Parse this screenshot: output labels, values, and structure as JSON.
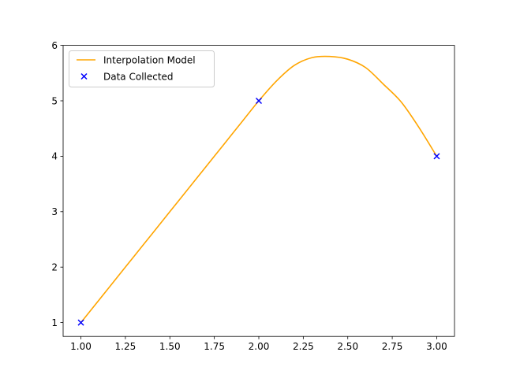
{
  "chart_data": {
    "type": "line",
    "title": "",
    "xlabel": "",
    "ylabel": "",
    "xlim": [
      0.9,
      3.1
    ],
    "ylim": [
      0.75,
      6.0
    ],
    "xticks": [
      1.0,
      1.25,
      1.5,
      1.75,
      2.0,
      2.25,
      2.5,
      2.75,
      3.0
    ],
    "xtick_labels": [
      "1.00",
      "1.25",
      "1.50",
      "1.75",
      "2.00",
      "2.25",
      "2.50",
      "2.75",
      "3.00"
    ],
    "yticks": [
      1,
      2,
      3,
      4,
      5,
      6
    ],
    "ytick_labels": [
      "1",
      "2",
      "3",
      "4",
      "5",
      "6"
    ],
    "grid": false,
    "legend_position": "top-left",
    "series": [
      {
        "name": "Interpolation Model",
        "kind": "line",
        "color": "#ffa500",
        "x": [
          1.0,
          1.1,
          1.2,
          1.3,
          1.4,
          1.5,
          1.6,
          1.7,
          1.8,
          1.9,
          2.0,
          2.1,
          2.2,
          2.3,
          2.4,
          2.5,
          2.6,
          2.7,
          2.8,
          2.9,
          3.0
        ],
        "y": [
          1.0,
          1.4,
          1.8,
          2.2,
          2.6,
          3.0,
          3.4,
          3.8,
          4.2,
          4.6,
          5.0,
          5.36,
          5.64,
          5.78,
          5.8,
          5.75,
          5.6,
          5.3,
          4.98,
          4.52,
          4.0
        ]
      },
      {
        "name": "Data Collected",
        "kind": "scatter",
        "marker": "x",
        "color": "#0000ff",
        "x": [
          1.0,
          2.0,
          3.0
        ],
        "y": [
          1.0,
          5.0,
          4.0
        ]
      }
    ]
  }
}
